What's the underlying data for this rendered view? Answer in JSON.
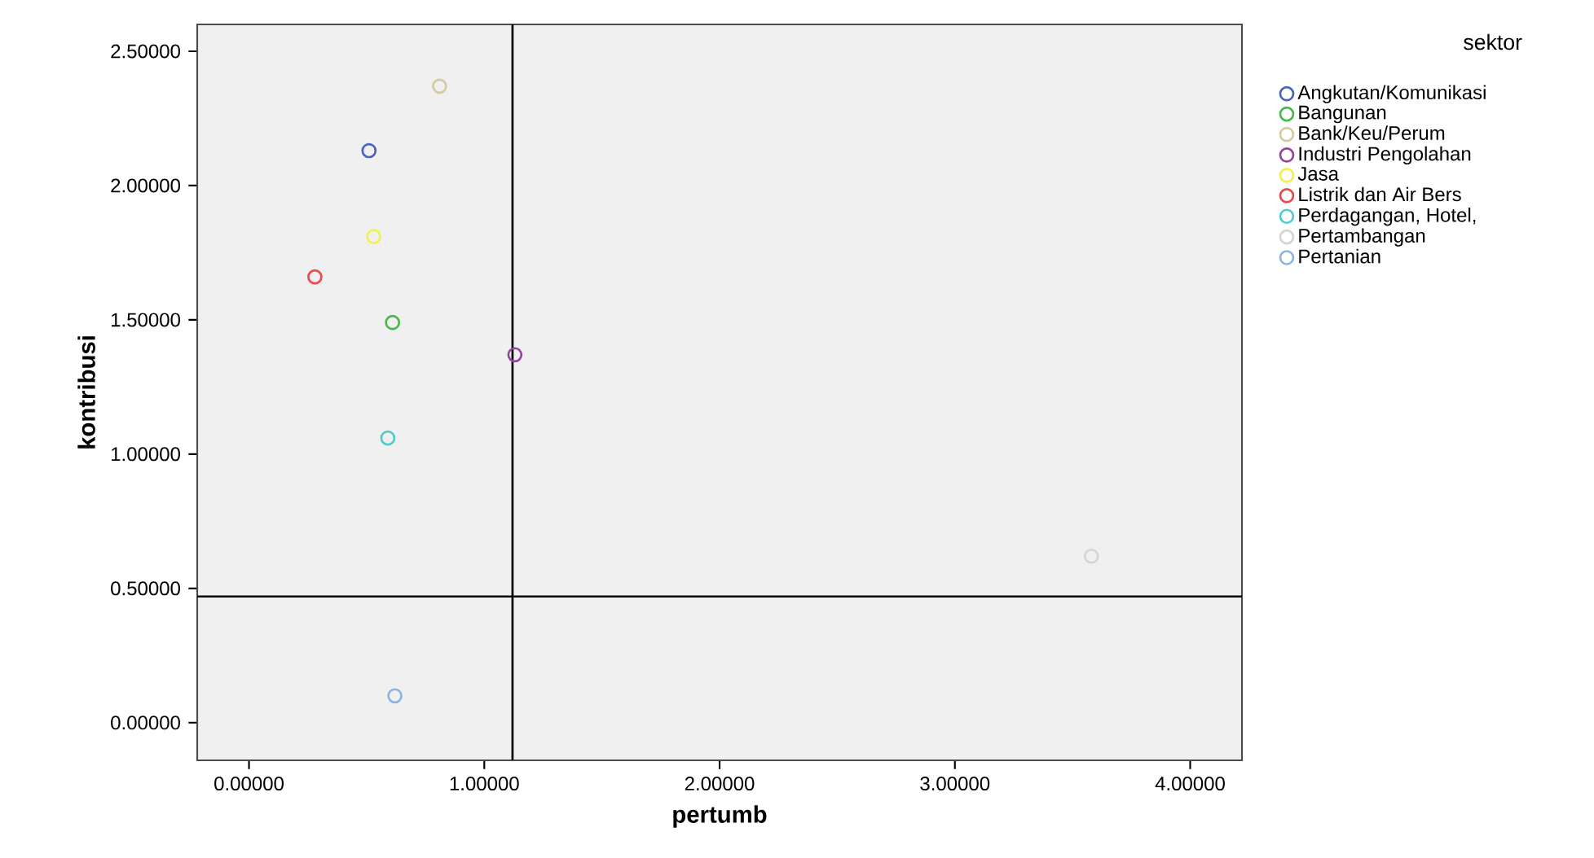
{
  "chart_data": {
    "type": "scatter",
    "xlabel": "pertumb",
    "ylabel": "kontribusi",
    "legend_title": "sektor",
    "legend": "right",
    "marker": "circle",
    "grid": false,
    "xlim": [
      -0.22,
      4.22
    ],
    "ylim": [
      -0.14,
      2.6
    ],
    "xticks": [
      {
        "value": 0,
        "label": "0.00000"
      },
      {
        "value": 1,
        "label": "1.00000"
      },
      {
        "value": 2,
        "label": "2.00000"
      },
      {
        "value": 3,
        "label": "3.00000"
      },
      {
        "value": 4,
        "label": "4.00000"
      }
    ],
    "yticks": [
      {
        "value": 0,
        "label": "0.00000"
      },
      {
        "value": 0.5,
        "label": "0.50000"
      },
      {
        "value": 1,
        "label": "1.00000"
      },
      {
        "value": 1.5,
        "label": "1.50000"
      },
      {
        "value": 2,
        "label": "2.00000"
      },
      {
        "value": 2.5,
        "label": "2.50000"
      }
    ],
    "ref_lines": [
      {
        "axis": "x",
        "value": 1.12,
        "color": "#000000"
      },
      {
        "axis": "y",
        "value": 0.47,
        "color": "#000000"
      }
    ],
    "series": [
      {
        "name": "Angkutan/Komunikasi",
        "color": "#4a64bc",
        "x": [
          0.51
        ],
        "values": [
          2.13
        ]
      },
      {
        "name": "Bangunan",
        "color": "#46b84e",
        "x": [
          0.61
        ],
        "values": [
          1.49
        ]
      },
      {
        "name": "Bank/Keu/Perum",
        "color": "#d4cc9e",
        "x": [
          0.81
        ],
        "values": [
          2.37
        ]
      },
      {
        "name": "Industri Pengolahan",
        "color": "#94449c",
        "x": [
          1.13
        ],
        "values": [
          1.37
        ]
      },
      {
        "name": "Jasa",
        "color": "#f2f050",
        "x": [
          0.53
        ],
        "values": [
          1.81
        ]
      },
      {
        "name": "Listrik dan Air Bers",
        "color": "#ec4a4a",
        "x": [
          0.28
        ],
        "values": [
          1.66
        ]
      },
      {
        "name": "Perdagangan, Hotel,",
        "color": "#50cccc",
        "x": [
          0.59
        ],
        "values": [
          1.06
        ]
      },
      {
        "name": "Pertambangan",
        "color": "#d4d4d4",
        "x": [
          3.58
        ],
        "values": [
          0.62
        ]
      },
      {
        "name": "Pertanian",
        "color": "#8cb4e0",
        "x": [
          0.62
        ],
        "values": [
          0.1
        ]
      }
    ]
  }
}
